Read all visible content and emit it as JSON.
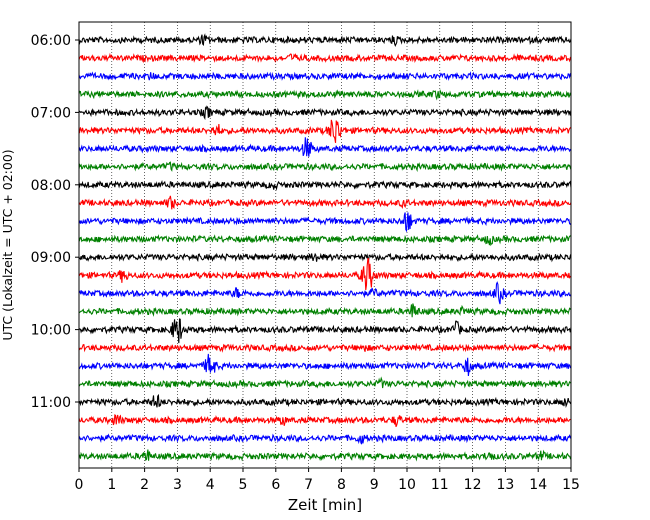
{
  "chart_data": {
    "type": "line",
    "title": "",
    "xlabel": "Zeit  [min]",
    "ylabel": "UTC (Lokalzeit = UTC + 02:00)",
    "xlim": [
      0,
      15
    ],
    "x_ticks": [
      "0",
      "1",
      "2",
      "3",
      "4",
      "5",
      "6",
      "7",
      "8",
      "9",
      "10",
      "11",
      "12",
      "13",
      "14",
      "15"
    ],
    "y_ticks": [
      "06:00",
      "07:00",
      "08:00",
      "09:00",
      "10:00",
      "11:00"
    ],
    "grid": "vertical dotted",
    "trace_colors": [
      "#000000",
      "#ff0000",
      "#0000ff",
      "#008000"
    ],
    "traces": [
      {
        "start": "06:00",
        "events": [
          {
            "t": 3.8,
            "a": 0.35
          },
          {
            "t": 9.6,
            "a": 0.3
          }
        ]
      },
      {
        "start": "06:15",
        "events": [
          {
            "t": 6.5,
            "a": 0.25
          }
        ]
      },
      {
        "start": "06:30",
        "events": [
          {
            "t": 2.2,
            "a": 0.2
          }
        ]
      },
      {
        "start": "06:45",
        "events": [
          {
            "t": 10.9,
            "a": 0.25
          }
        ]
      },
      {
        "start": "07:00",
        "events": [
          {
            "t": 3.9,
            "a": 0.4
          }
        ]
      },
      {
        "start": "07:15",
        "events": [
          {
            "t": 4.2,
            "a": 0.5
          },
          {
            "t": 7.8,
            "a": 1.3
          }
        ]
      },
      {
        "start": "07:30",
        "events": [
          {
            "t": 6.95,
            "a": 0.9
          }
        ]
      },
      {
        "start": "07:45",
        "events": [
          {
            "t": 2.8,
            "a": 0.2
          }
        ]
      },
      {
        "start": "08:00",
        "events": [
          {
            "t": 5.9,
            "a": 0.3
          }
        ]
      },
      {
        "start": "08:15",
        "events": [
          {
            "t": 2.8,
            "a": 0.5
          },
          {
            "t": 9.9,
            "a": 0.25
          }
        ]
      },
      {
        "start": "08:30",
        "events": [
          {
            "t": 10.0,
            "a": 0.9
          }
        ]
      },
      {
        "start": "08:45",
        "events": [
          {
            "t": 12.5,
            "a": 0.4
          }
        ]
      },
      {
        "start": "09:00",
        "events": [
          {
            "t": 7.2,
            "a": 0.35
          }
        ]
      },
      {
        "start": "09:15",
        "events": [
          {
            "t": 1.35,
            "a": 0.5
          },
          {
            "t": 8.8,
            "a": 1.4
          }
        ]
      },
      {
        "start": "09:30",
        "events": [
          {
            "t": 4.8,
            "a": 0.35
          },
          {
            "t": 9.0,
            "a": 0.3
          },
          {
            "t": 12.8,
            "a": 0.8
          }
        ]
      },
      {
        "start": "09:45",
        "events": [
          {
            "t": 10.2,
            "a": 0.6
          },
          {
            "t": 11.7,
            "a": 0.25
          }
        ]
      },
      {
        "start": "10:00",
        "events": [
          {
            "t": 3.0,
            "a": 1.2
          },
          {
            "t": 11.5,
            "a": 0.55
          }
        ]
      },
      {
        "start": "10:15",
        "events": [
          {
            "t": 8.7,
            "a": 0.2
          }
        ]
      },
      {
        "start": "10:30",
        "events": [
          {
            "t": 4.0,
            "a": 1.0
          },
          {
            "t": 11.85,
            "a": 0.7
          }
        ]
      },
      {
        "start": "10:45",
        "events": [
          {
            "t": 9.2,
            "a": 0.3
          }
        ]
      },
      {
        "start": "11:00",
        "events": [
          {
            "t": 2.35,
            "a": 0.6
          },
          {
            "t": 14.8,
            "a": 0.3
          }
        ]
      },
      {
        "start": "11:15",
        "events": [
          {
            "t": 1.15,
            "a": 0.5
          },
          {
            "t": 6.2,
            "a": 0.35
          },
          {
            "t": 9.7,
            "a": 0.45
          }
        ]
      },
      {
        "start": "11:30",
        "events": [
          {
            "t": 8.6,
            "a": 0.4
          }
        ]
      },
      {
        "start": "11:45",
        "events": [
          {
            "t": 2.05,
            "a": 0.5
          },
          {
            "t": 12.5,
            "a": 0.4
          },
          {
            "t": 14.1,
            "a": 0.3
          }
        ]
      }
    ]
  }
}
